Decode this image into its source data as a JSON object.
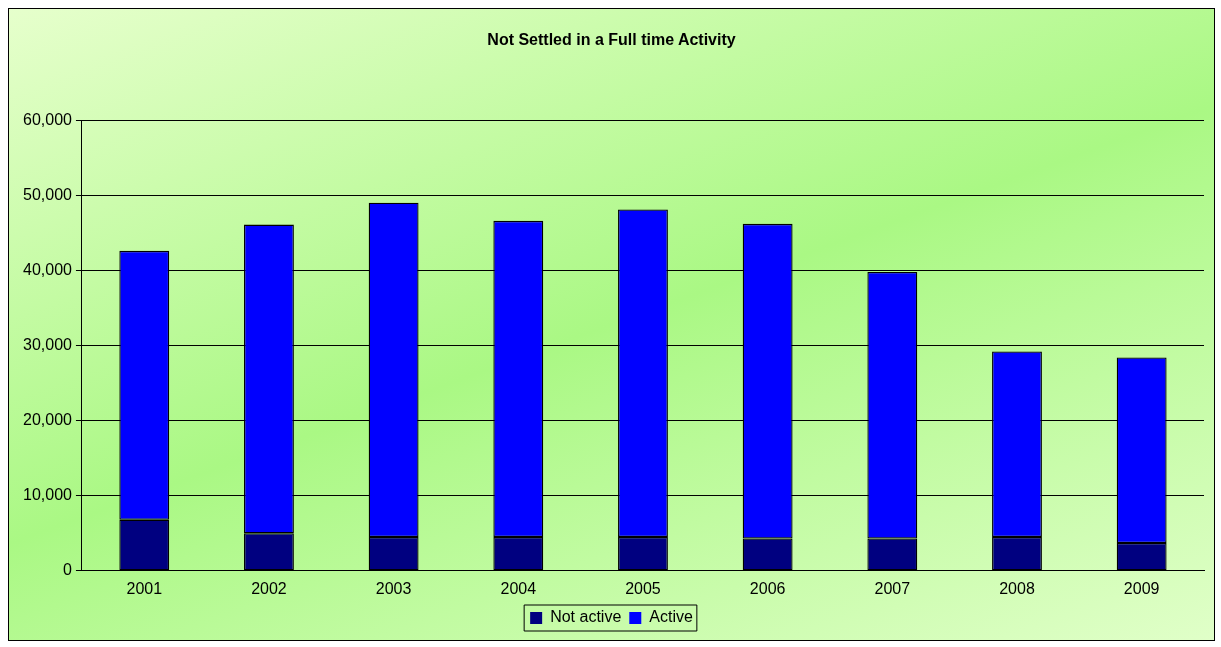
{
  "chart_data": {
    "type": "bar",
    "title": "Not Settled in a Full time Activity",
    "categories": [
      "2001",
      "2002",
      "2003",
      "2004",
      "2005",
      "2006",
      "2007",
      "2008",
      "2009"
    ],
    "series": [
      {
        "name": "Not active",
        "color": "#000080",
        "values": [
          6800,
          5000,
          4500,
          4500,
          4500,
          4300,
          4300,
          4500,
          3700
        ]
      },
      {
        "name": "Active",
        "color": "#0000ff",
        "values": [
          35800,
          41100,
          44500,
          42100,
          43600,
          41900,
          35500,
          24700,
          24700
        ]
      }
    ],
    "stacked": true,
    "ylim": [
      0,
      60000
    ],
    "yticks": [
      {
        "value": 0,
        "label": "0"
      },
      {
        "value": 10000,
        "label": "10,000"
      },
      {
        "value": 20000,
        "label": "20,000"
      },
      {
        "value": 30000,
        "label": "30,000"
      },
      {
        "value": 40000,
        "label": "40,000"
      },
      {
        "value": 50000,
        "label": "50,000"
      },
      {
        "value": 60000,
        "label": "60,000"
      }
    ],
    "grid": "y",
    "legend": "bottom"
  }
}
